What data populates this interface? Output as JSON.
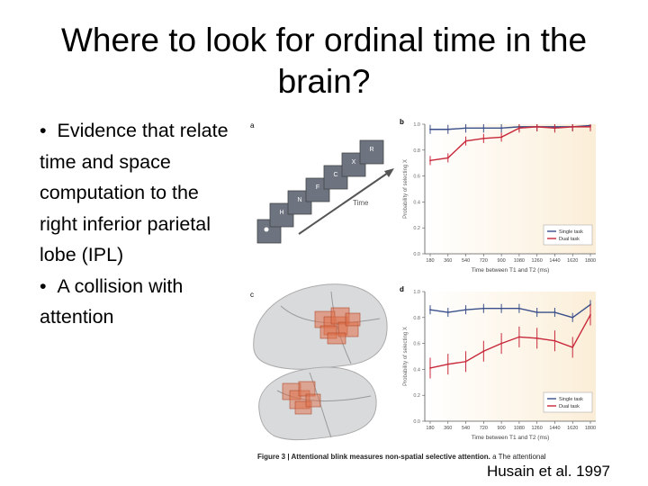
{
  "slide": {
    "title": "Where to look for ordinal time in the brain?",
    "bullets": [
      "Evidence that relate time and space computation to the right inferior parietal lobe (IPL)",
      "A collision with attention"
    ],
    "bullet_marker": "•",
    "citation": "Husain et al. 1997"
  },
  "figure": {
    "panel_a": {
      "label": "a",
      "letters": [
        "H",
        "N",
        "F",
        "C",
        "X",
        "R"
      ],
      "arrow_label": "Time"
    },
    "panel_c": {
      "label": "c"
    },
    "caption_bold": "Figure 3 | Attentional blink measures non-spatial selective attention.",
    "caption_rest": " a  The attentional"
  },
  "chart_data": [
    {
      "type": "line",
      "panel_label": "b",
      "x": [
        180,
        360,
        540,
        720,
        900,
        1080,
        1260,
        1440,
        1620,
        1800
      ],
      "x_tick_labels": [
        "180",
        "360",
        "540",
        "720",
        "900",
        "1080",
        "1260",
        "1440",
        "1620",
        "1800"
      ],
      "xlabel": "Time between T1 and T2 (ms)",
      "ylabel": "Probability of selecting X",
      "y_tick_labels": [
        "0.0",
        "0.2",
        "0.4",
        "0.6",
        "0.8",
        "1.0"
      ],
      "ylim": [
        0,
        1.0
      ],
      "series": [
        {
          "name": "Single task",
          "color": "#3a4f8a",
          "values": [
            0.96,
            0.96,
            0.97,
            0.97,
            0.97,
            0.98,
            0.98,
            0.98,
            0.98,
            0.99
          ]
        },
        {
          "name": "Dual task",
          "color": "#c8283a",
          "values": [
            0.72,
            0.74,
            0.87,
            0.89,
            0.9,
            0.97,
            0.98,
            0.97,
            0.98,
            0.98
          ]
        }
      ],
      "legend": "bottom-right"
    },
    {
      "type": "line",
      "panel_label": "d",
      "x": [
        180,
        360,
        540,
        720,
        900,
        1080,
        1260,
        1440,
        1620,
        1800
      ],
      "x_tick_labels": [
        "180",
        "360",
        "540",
        "720",
        "900",
        "1080",
        "1260",
        "1440",
        "1620",
        "1800"
      ],
      "xlabel": "Time between T1 and T2 (ms)",
      "ylabel": "Probability of selecting X",
      "y_tick_labels": [
        "0.0",
        "0.2",
        "0.4",
        "0.6",
        "0.8",
        "1.0"
      ],
      "ylim": [
        0,
        1.0
      ],
      "series": [
        {
          "name": "Single task",
          "color": "#3a4f8a",
          "values": [
            0.86,
            0.84,
            0.86,
            0.87,
            0.87,
            0.87,
            0.84,
            0.84,
            0.8,
            0.9
          ]
        },
        {
          "name": "Dual task",
          "color": "#c8283a",
          "values": [
            0.41,
            0.44,
            0.46,
            0.54,
            0.6,
            0.65,
            0.64,
            0.62,
            0.57,
            0.82
          ]
        }
      ],
      "legend": "bottom-right"
    }
  ]
}
